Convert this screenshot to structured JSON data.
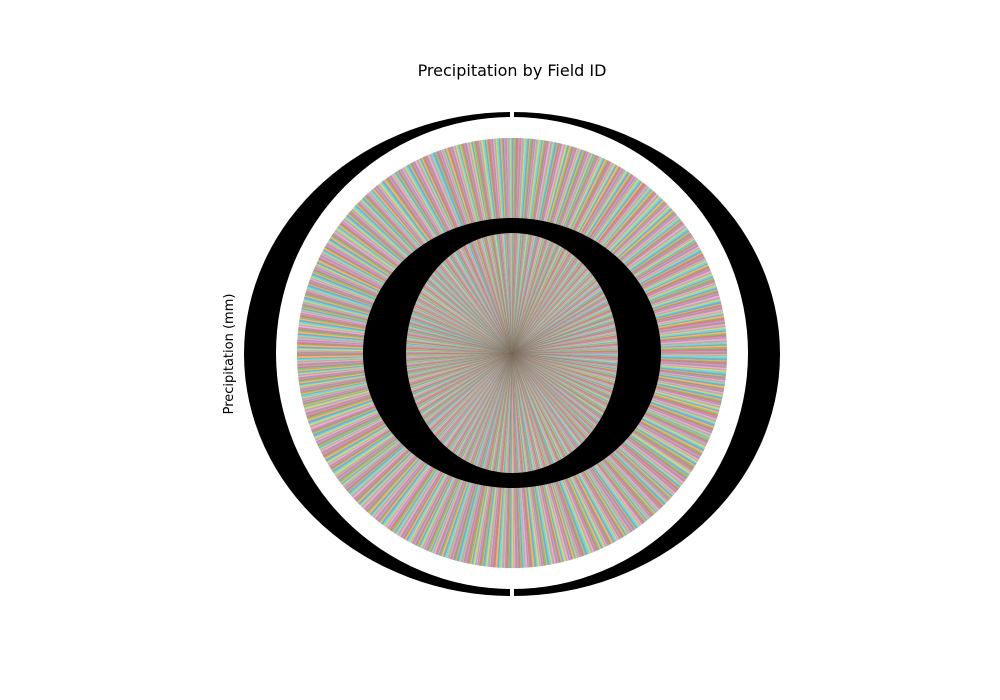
{
  "chart_data": {
    "type": "pie",
    "title": "Precipitation by Field ID",
    "ylabel": "Precipitation (mm)",
    "xlabel": "",
    "legend": "none",
    "grid": false,
    "label_note": "slice labels (field IDs) and percentages are rendered as overlapping black text that is illegible in the image",
    "slice_count_estimate": 1000,
    "slice_values_legible": false,
    "palette": [
      "#1f77b4",
      "#ff7f0e",
      "#2ca02c",
      "#d62728",
      "#9467bd",
      "#8c564b",
      "#e377c2",
      "#7f7f7f",
      "#bcbd22",
      "#17becf"
    ],
    "slice_alpha": 0.6
  }
}
